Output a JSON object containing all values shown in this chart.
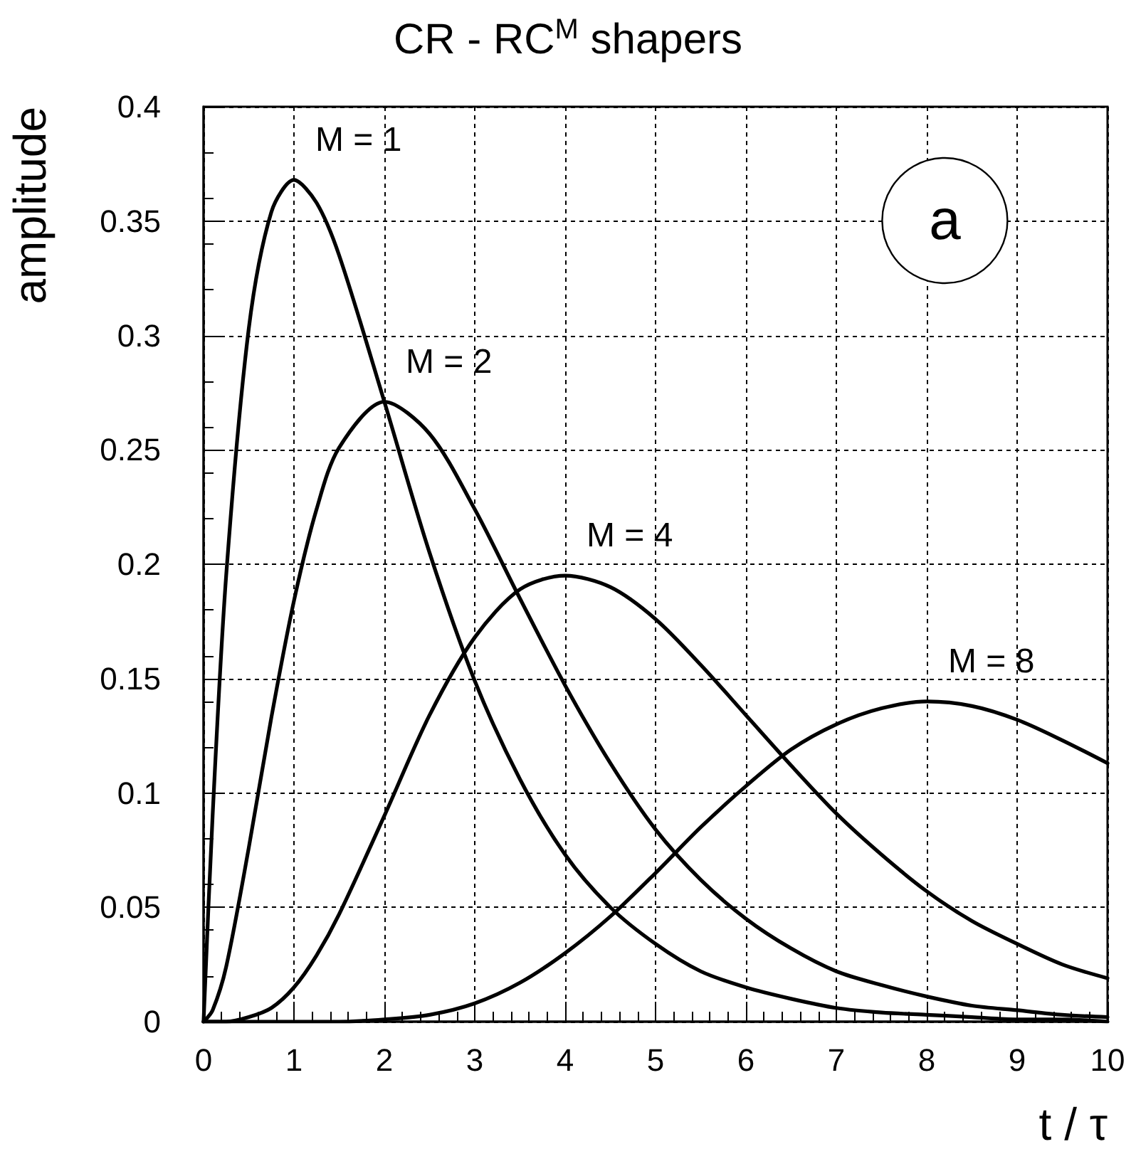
{
  "chart_data": {
    "type": "line",
    "title": "CR - RC$^{M}$ shapers",
    "xlabel": "t / τ",
    "ylabel": "amplitude",
    "x": [
      0,
      0.1,
      0.25,
      0.5,
      0.75,
      1,
      1.25,
      1.5,
      2,
      2.5,
      3,
      3.5,
      4,
      4.5,
      5,
      5.5,
      6,
      6.5,
      7,
      7.5,
      8,
      8.5,
      9,
      9.5,
      10
    ],
    "series": [
      {
        "name": "M = 1",
        "color": "#000000",
        "values": [
          0,
          0.09,
          0.195,
          0.303,
          0.354,
          0.368,
          0.358,
          0.335,
          0.271,
          0.205,
          0.149,
          0.106,
          0.073,
          0.05,
          0.034,
          0.022,
          0.015,
          0.01,
          0.006,
          0.004,
          0.003,
          0.002,
          0.001,
          0.001,
          0.0
        ]
      },
      {
        "name": "M = 2",
        "color": "#000000",
        "values": [
          0,
          0.005,
          0.024,
          0.076,
          0.133,
          0.184,
          0.224,
          0.251,
          0.271,
          0.257,
          0.224,
          0.185,
          0.147,
          0.113,
          0.084,
          0.062,
          0.045,
          0.032,
          0.022,
          0.016,
          0.011,
          0.007,
          0.005,
          0.003,
          0.002
        ]
      },
      {
        "name": "M = 4",
        "color": "#000000",
        "values": [
          0,
          0.0,
          0.0,
          0.002,
          0.006,
          0.015,
          0.029,
          0.047,
          0.09,
          0.134,
          0.168,
          0.189,
          0.195,
          0.19,
          0.176,
          0.156,
          0.134,
          0.112,
          0.091,
          0.073,
          0.057,
          0.044,
          0.034,
          0.025,
          0.019
        ]
      },
      {
        "name": "M = 8",
        "color": "#000000",
        "values": [
          0,
          0.0,
          0.0,
          0.0,
          0.0,
          0.0,
          0.0,
          0.0,
          0.001,
          0.003,
          0.008,
          0.017,
          0.03,
          0.046,
          0.065,
          0.085,
          0.103,
          0.119,
          0.13,
          0.137,
          0.14,
          0.138,
          0.132,
          0.123,
          0.113
        ]
      }
    ],
    "annotations": [
      "a"
    ],
    "xlim": [
      0,
      10
    ],
    "xticks": [
      0,
      1,
      2,
      3,
      4,
      5,
      6,
      7,
      8,
      9,
      10
    ],
    "ylim": [
      0,
      0.4
    ],
    "yticks": [
      0,
      0.05,
      0.1,
      0.15,
      0.2,
      0.25,
      0.3,
      0.35,
      0.4
    ],
    "grid": true,
    "legend": false,
    "marker": "none",
    "line_style": "solid"
  }
}
